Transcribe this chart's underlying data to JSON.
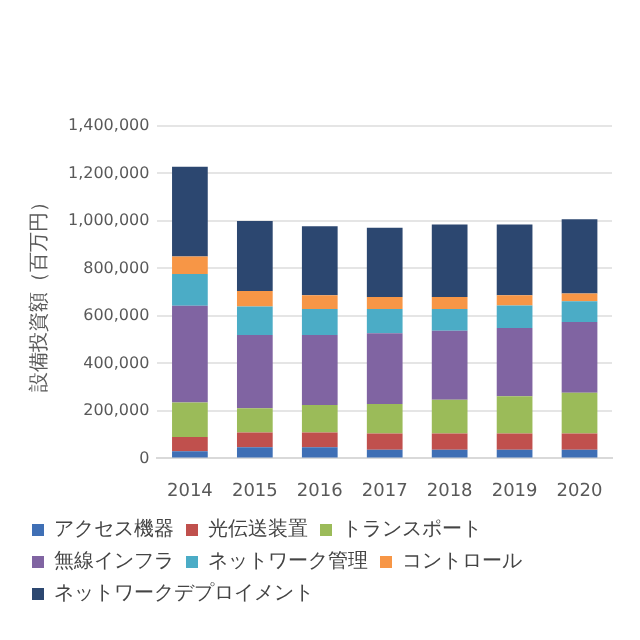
{
  "chart_data": {
    "type": "bar",
    "stacked": true,
    "ylabel": "設備投資額（百万円）",
    "categories": [
      "2014",
      "2015",
      "2016",
      "2017",
      "2018",
      "2019",
      "2020"
    ],
    "series": [
      {
        "name": "アクセス機器",
        "color": "#3f6fb5",
        "values": [
          30000,
          47000,
          47000,
          36000,
          36000,
          36000,
          36000
        ]
      },
      {
        "name": "光伝送装置",
        "color": "#c0504d",
        "values": [
          60000,
          62000,
          62000,
          69000,
          69000,
          69000,
          69000
        ]
      },
      {
        "name": "トランスポート",
        "color": "#9bbb59",
        "values": [
          145000,
          102000,
          116000,
          124000,
          142000,
          157000,
          171000
        ]
      },
      {
        "name": "無線インフラ",
        "color": "#8064a2",
        "values": [
          408000,
          309000,
          295000,
          298000,
          291000,
          287000,
          299000
        ]
      },
      {
        "name": "ネットワーク管理",
        "color": "#4bacc6",
        "values": [
          134000,
          120000,
          109000,
          102000,
          91000,
          95000,
          87000
        ]
      },
      {
        "name": "コントロール",
        "color": "#f79646",
        "values": [
          73000,
          65000,
          58000,
          51000,
          51000,
          43000,
          33000
        ]
      },
      {
        "name": "ネットワークデプロイメント",
        "color": "#2c4770",
        "values": [
          378000,
          295000,
          291000,
          291000,
          305000,
          298000,
          312000
        ]
      }
    ],
    "ylim": [
      0,
      1400000
    ],
    "yticks": [
      0,
      {
        "value": 200000,
        "label": "200,000"
      },
      {
        "value": 400000,
        "label": "400,000"
      },
      {
        "value": 600000,
        "label": "600,000"
      },
      {
        "value": 800000,
        "label": "800,000"
      },
      {
        "value": 1000000,
        "label": "1,000,000"
      },
      {
        "value": 1200000,
        "label": "1,200,000"
      },
      {
        "value": 1400000,
        "label": "1,400,000"
      }
    ],
    "grid": "y",
    "legend": "bottom"
  }
}
